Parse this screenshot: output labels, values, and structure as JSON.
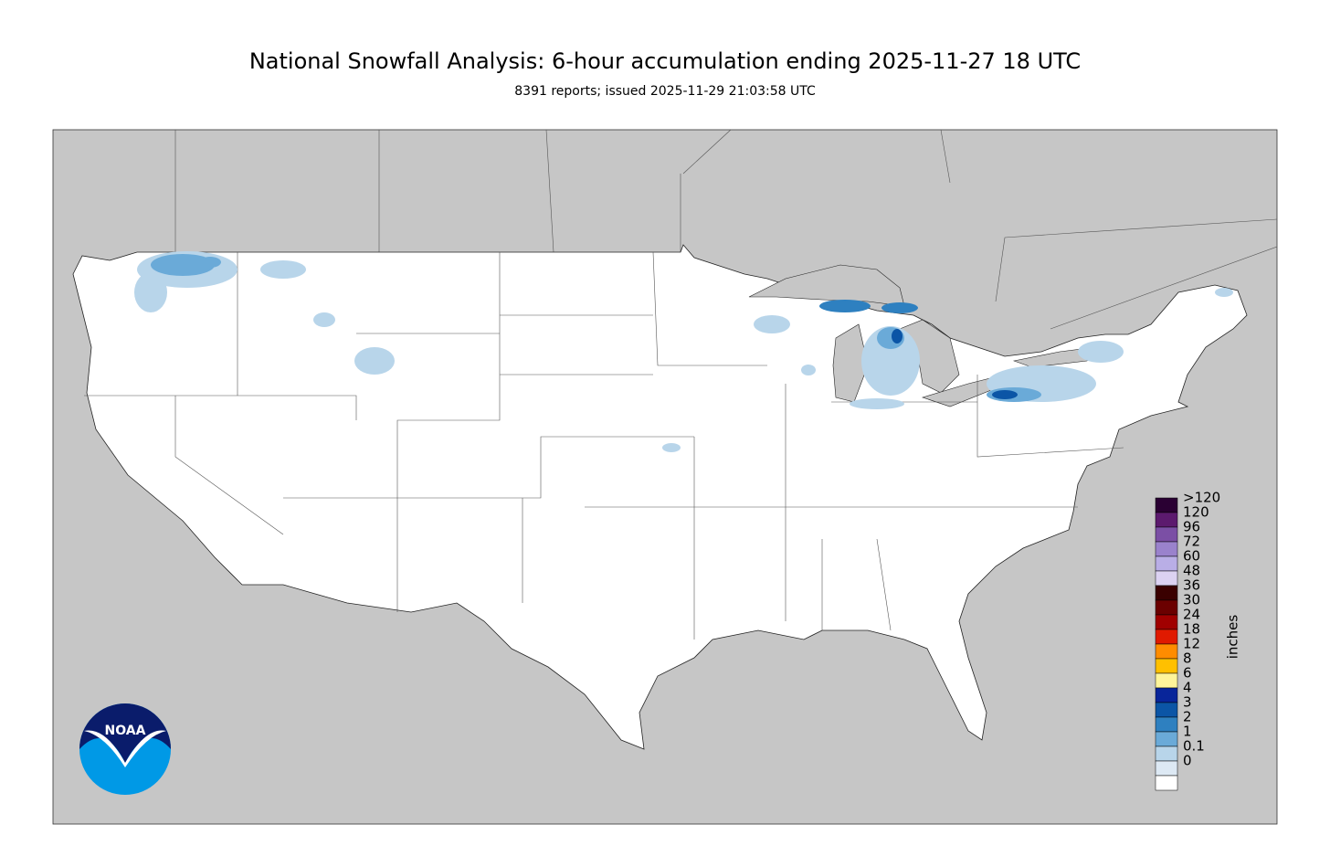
{
  "header": {
    "title": "National Snowfall Analysis: 6-hour accumulation ending 2025-11-27 18 UTC",
    "subtitle": "8391 reports; issued 2025-11-29 21:03:58 UTC"
  },
  "legend": {
    "unit": "inches",
    "levels": [
      {
        "label": ">120",
        "color": "#2a0033"
      },
      {
        "label": "120",
        "color": "#5c1a6e"
      },
      {
        "label": "96",
        "color": "#7b4fa5"
      },
      {
        "label": "72",
        "color": "#9a82cc"
      },
      {
        "label": "60",
        "color": "#b9aee6"
      },
      {
        "label": "48",
        "color": "#dcd2f2"
      },
      {
        "label": "36",
        "color": "#3a0000"
      },
      {
        "label": "30",
        "color": "#6b0000"
      },
      {
        "label": "24",
        "color": "#a00000"
      },
      {
        "label": "18",
        "color": "#e01a00"
      },
      {
        "label": "12",
        "color": "#ff8c00"
      },
      {
        "label": "8",
        "color": "#ffc000"
      },
      {
        "label": "6",
        "color": "#fff59a"
      },
      {
        "label": "4",
        "color": "#08259a"
      },
      {
        "label": "3",
        "color": "#0b55a6"
      },
      {
        "label": "2",
        "color": "#2e80c0"
      },
      {
        "label": "1",
        "color": "#6aaad8"
      },
      {
        "label": "0.1",
        "color": "#b8d5ea"
      },
      {
        "label": "0",
        "color": "#dde9f4"
      }
    ]
  },
  "logo": {
    "text": "NOAA"
  }
}
